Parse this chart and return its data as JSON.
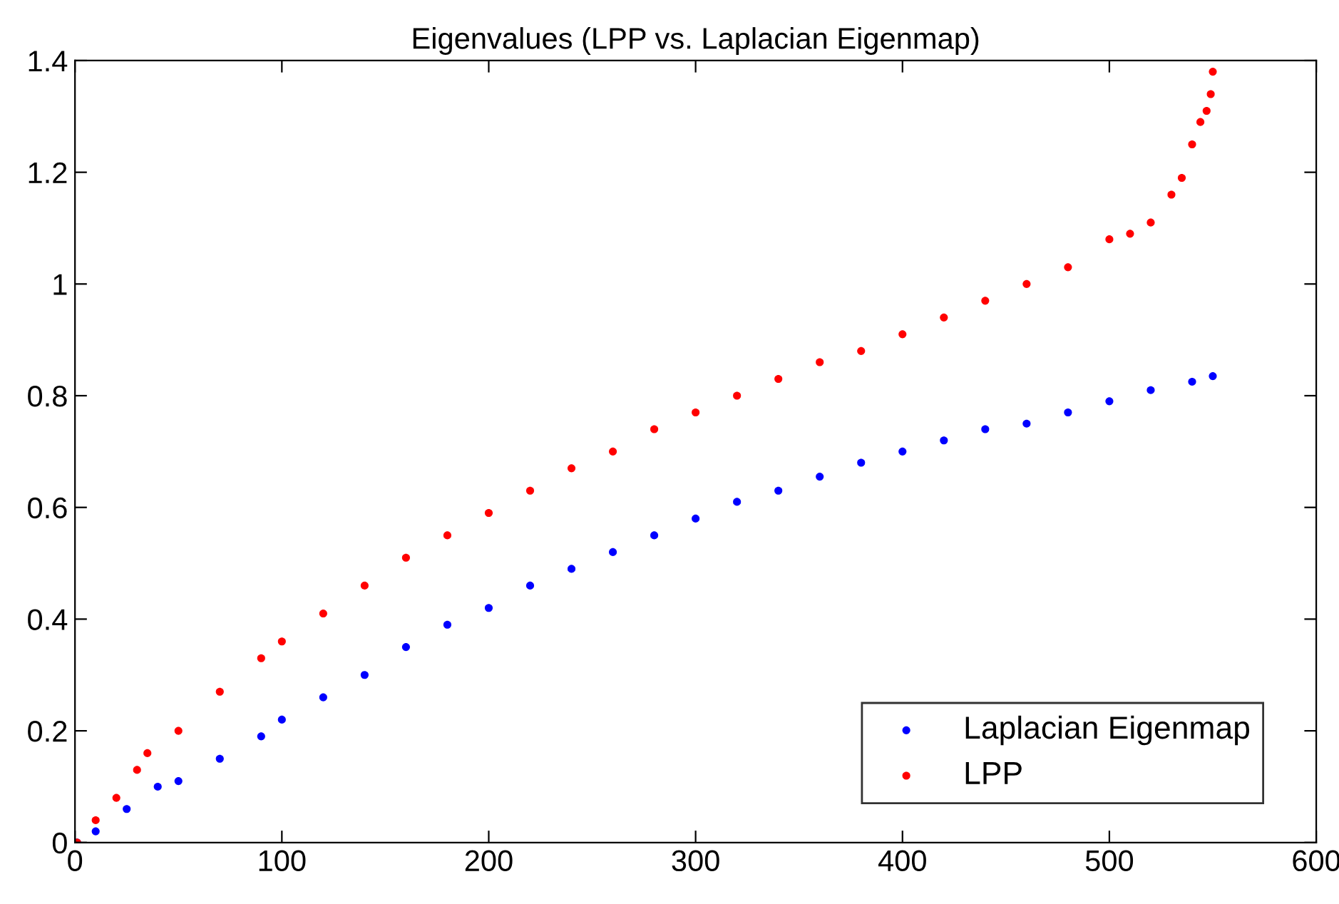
{
  "chart_data": {
    "type": "scatter",
    "title": "Eigenvalues (LPP vs. Laplacian Eigenmap)",
    "xlim": [
      0,
      600
    ],
    "ylim": [
      0,
      1.4
    ],
    "xticks": [
      0,
      100,
      200,
      300,
      400,
      500,
      600
    ],
    "yticks": [
      0,
      0.2,
      0.4,
      0.6,
      0.8,
      1,
      1.2,
      1.4
    ],
    "grid": false,
    "legend": "bottom right",
    "marker": "circle",
    "series": [
      {
        "name": "Laplacian Eigenmap",
        "color": "#0000ff",
        "x": [
          1,
          10,
          25,
          40,
          50,
          70,
          90,
          100,
          120,
          140,
          160,
          180,
          200,
          220,
          240,
          260,
          280,
          300,
          320,
          340,
          360,
          380,
          400,
          420,
          440,
          460,
          480,
          500,
          520,
          540,
          550
        ],
        "values": [
          0,
          0.02,
          0.06,
          0.1,
          0.11,
          0.15,
          0.19,
          0.22,
          0.26,
          0.3,
          0.35,
          0.39,
          0.42,
          0.46,
          0.49,
          0.52,
          0.55,
          0.58,
          0.61,
          0.63,
          0.655,
          0.68,
          0.7,
          0.72,
          0.74,
          0.75,
          0.77,
          0.79,
          0.81,
          0.825,
          0.835
        ]
      },
      {
        "name": "LPP",
        "color": "#ff0000",
        "x": [
          1,
          10,
          20,
          30,
          35,
          50,
          70,
          90,
          100,
          120,
          140,
          160,
          180,
          200,
          220,
          240,
          260,
          280,
          300,
          320,
          340,
          360,
          380,
          400,
          420,
          440,
          460,
          480,
          500,
          510,
          520,
          530,
          535,
          540,
          544,
          547,
          549,
          550
        ],
        "values": [
          0,
          0.04,
          0.08,
          0.13,
          0.16,
          0.2,
          0.27,
          0.33,
          0.36,
          0.41,
          0.46,
          0.51,
          0.55,
          0.59,
          0.63,
          0.67,
          0.7,
          0.74,
          0.77,
          0.8,
          0.83,
          0.86,
          0.88,
          0.91,
          0.94,
          0.97,
          1.0,
          1.03,
          1.08,
          1.09,
          1.11,
          1.16,
          1.19,
          1.25,
          1.29,
          1.31,
          1.34,
          1.38
        ]
      }
    ]
  }
}
